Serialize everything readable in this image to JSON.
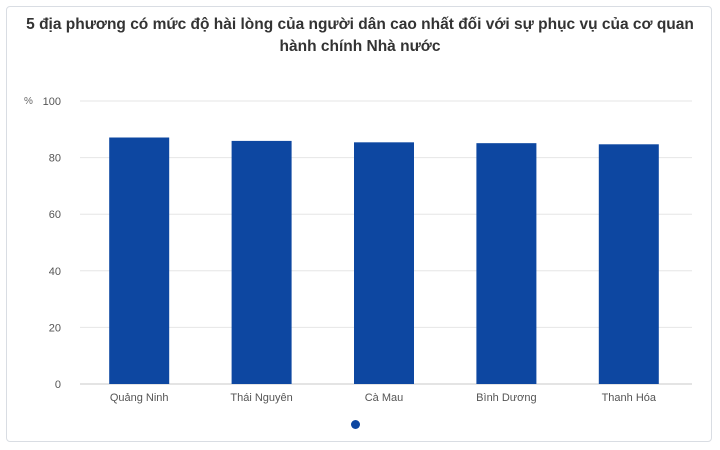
{
  "chart_data": {
    "type": "bar",
    "title": "5 địa phương có mức độ hài lòng của người dân cao nhất đối với sự phục vụ của cơ quan hành chính Nhà nước",
    "ylabel": "%",
    "xlabel": "",
    "categories": [
      "Quảng Ninh",
      "Thái Nguyên",
      "Cà Mau",
      "Bình Dương",
      "Thanh Hóa"
    ],
    "values": [
      87.1,
      85.9,
      85.4,
      85.1,
      84.7
    ],
    "yticks": [
      0,
      20,
      40,
      60,
      80,
      100
    ],
    "ylim": [
      0,
      100
    ],
    "grid": true,
    "legend": "none",
    "bar_color": "#0d47a1",
    "grid_color": "#e6e6e6",
    "axis_color": "#c8c8c8"
  },
  "pager": {
    "active_color": "#0d47a1"
  }
}
